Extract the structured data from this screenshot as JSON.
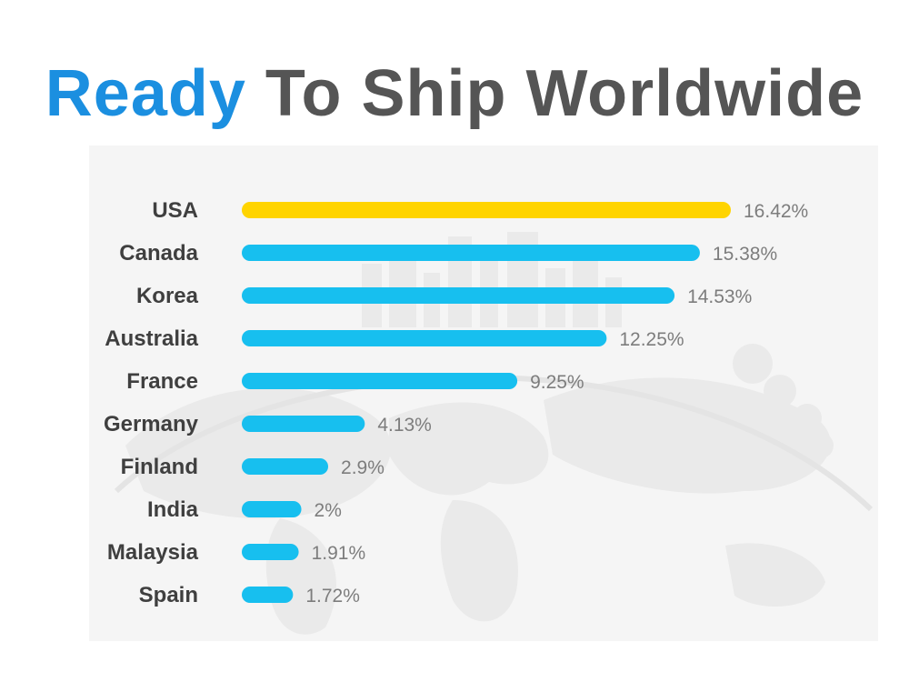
{
  "title": {
    "accent": "Ready",
    "rest": "To Ship Worldwide"
  },
  "colors": {
    "accent": "#1b8fe0",
    "title_gray": "#555555",
    "bar_top": "#ffd400",
    "bar": "#17bfef"
  },
  "chart_data": {
    "type": "bar",
    "orientation": "horizontal",
    "categories": [
      "USA",
      "Canada",
      "Korea",
      "Australia",
      "France",
      "Germany",
      "Finland",
      "India",
      "Malaysia",
      "Spain"
    ],
    "values": [
      16.42,
      15.38,
      14.53,
      12.25,
      9.25,
      4.13,
      2.9,
      2,
      1.91,
      1.72
    ],
    "value_labels": [
      "16.42%",
      "15.38%",
      "14.53%",
      "12.25%",
      "9.25%",
      "4.13%",
      "2.9%",
      "2%",
      "1.91%",
      "1.72%"
    ],
    "title": "",
    "xlabel": "",
    "ylabel": "",
    "xlim": [
      0,
      16.42
    ],
    "grid": false,
    "highlight_color": "#ffd400",
    "bar_color": "#17bfef"
  }
}
